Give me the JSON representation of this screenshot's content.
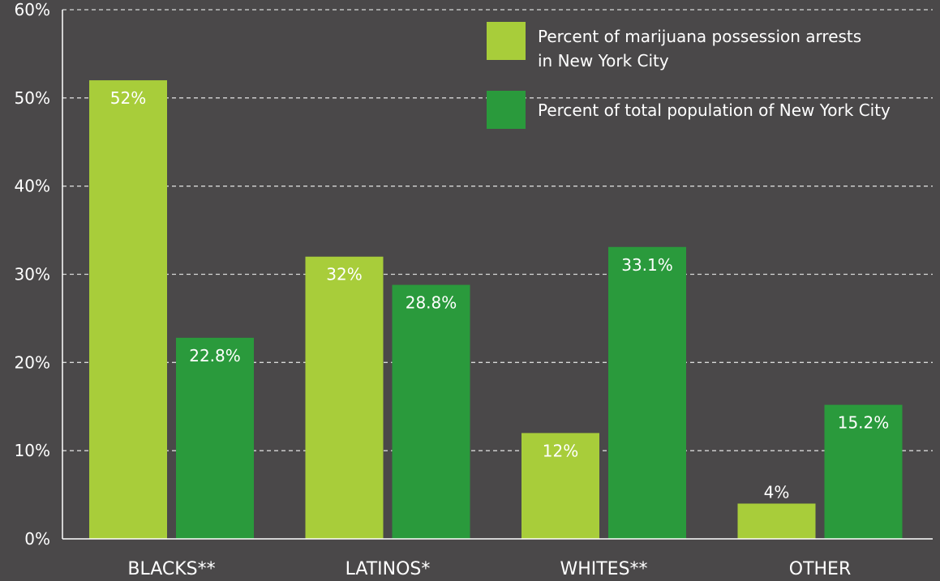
{
  "chart_data": {
    "type": "bar",
    "categories": [
      "BLACKS**",
      "LATINOS*",
      "WHITES**",
      "OTHER"
    ],
    "series": [
      {
        "name": "Percent of marijuana possession arrests in New York City",
        "legend_lines": [
          "Percent of marijuana possession arrests",
          "in New York City"
        ],
        "values": [
          52,
          32,
          12,
          4
        ],
        "labels": [
          "52%",
          "32%",
          "12%",
          "4%"
        ],
        "color": "#a8cd3a"
      },
      {
        "name": "Percent of total population of New York City",
        "legend_lines": [
          "Percent of total population of New York City"
        ],
        "values": [
          22.8,
          28.8,
          33.1,
          15.2
        ],
        "labels": [
          "22.8%",
          "28.8%",
          "33.1%",
          "15.2%"
        ],
        "color": "#2a9a3c"
      }
    ],
    "ylim": [
      0,
      60
    ],
    "yticks": [
      "0%",
      "10%",
      "20%",
      "30%",
      "40%",
      "50%",
      "60%"
    ],
    "grid": true,
    "legend_position": "top-right",
    "background_color": "#4a4849",
    "text_color": "#ffffff"
  }
}
